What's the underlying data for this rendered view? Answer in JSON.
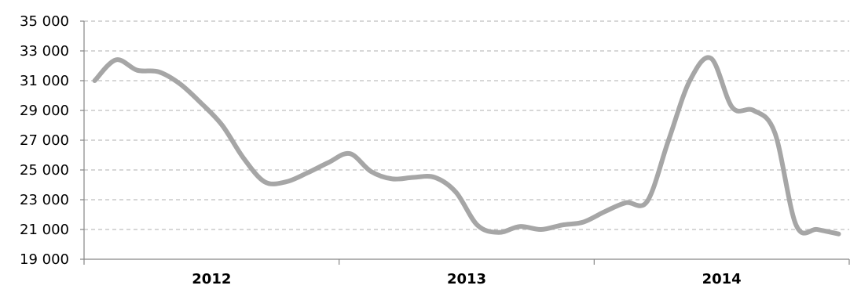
{
  "chart_data": {
    "type": "line",
    "title": "",
    "xlabel": "",
    "ylabel": "",
    "ylim": [
      19000,
      35000
    ],
    "yticks": [
      19000,
      21000,
      23000,
      25000,
      27000,
      29000,
      31000,
      33000,
      35000
    ],
    "ytick_labels": [
      "19 000",
      "21 000",
      "23 000",
      "25 000",
      "27 000",
      "29 000",
      "31 000",
      "33 000",
      "35 000"
    ],
    "grid": "horizontal dashed",
    "legend": "none",
    "x_categories": [
      "2012",
      "2013",
      "2014"
    ],
    "months_per_category": 12,
    "x_range_months": [
      0,
      35
    ],
    "series": [
      {
        "color": "#a6a6a6",
        "points": [
          {
            "month": 0,
            "value": 31000
          },
          {
            "month": 1,
            "value": 32400
          },
          {
            "month": 2,
            "value": 31700
          },
          {
            "month": 3,
            "value": 31600
          },
          {
            "month": 4,
            "value": 30800
          },
          {
            "month": 5,
            "value": 29500
          },
          {
            "month": 6,
            "value": 28000
          },
          {
            "month": 7,
            "value": 25800
          },
          {
            "month": 8,
            "value": 24200
          },
          {
            "month": 9,
            "value": 24200
          },
          {
            "month": 10,
            "value": 24800
          },
          {
            "month": 11,
            "value": 25500
          },
          {
            "month": 12,
            "value": 26100
          },
          {
            "month": 13,
            "value": 24900
          },
          {
            "month": 14,
            "value": 24400
          },
          {
            "month": 15,
            "value": 24500
          },
          {
            "month": 16,
            "value": 24500
          },
          {
            "month": 17,
            "value": 23500
          },
          {
            "month": 18,
            "value": 21300
          },
          {
            "month": 19,
            "value": 20800
          },
          {
            "month": 20,
            "value": 21200
          },
          {
            "month": 21,
            "value": 21000
          },
          {
            "month": 22,
            "value": 21300
          },
          {
            "month": 23,
            "value": 21500
          },
          {
            "month": 24,
            "value": 22200
          },
          {
            "month": 25,
            "value": 22800
          },
          {
            "month": 26,
            "value": 22900
          },
          {
            "month": 27,
            "value": 27000
          },
          {
            "month": 28,
            "value": 31000
          },
          {
            "month": 29,
            "value": 32500
          },
          {
            "month": 30,
            "value": 29200
          },
          {
            "month": 31,
            "value": 29000
          },
          {
            "month": 32,
            "value": 27500
          },
          {
            "month": 33,
            "value": 21300
          },
          {
            "month": 34,
            "value": 21000
          },
          {
            "month": 35,
            "value": 20700
          }
        ]
      }
    ]
  }
}
